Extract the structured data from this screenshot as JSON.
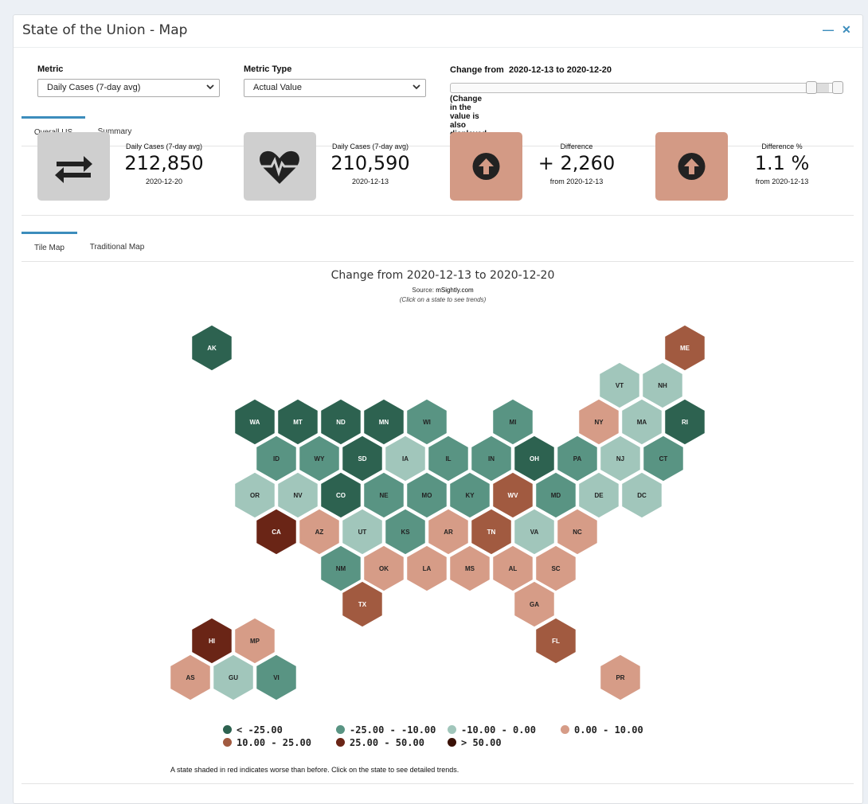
{
  "panel": {
    "title": "State of the Union - Map",
    "minimize_icon": "minus-icon",
    "close_icon": "close-icon"
  },
  "controls": {
    "metric_label": "Metric",
    "metric_value": "Daily Cases (7-day avg)",
    "metric_type_label": "Metric Type",
    "metric_type_value": "Actual Value",
    "change_label_prefix": "Change from",
    "change_label_range": "2020-12-13 to 2020-12-20",
    "note": "(Change in the value is also displayed as a % in the map.)"
  },
  "top_tabs": [
    {
      "label": "Overall US",
      "active": true
    },
    {
      "label": "Summary",
      "active": false
    }
  ],
  "kpis": [
    {
      "icon": "exchange-arrows-icon",
      "title": "Daily Cases (7-day avg)",
      "value": "212,850",
      "sub": "2020-12-20",
      "box_color": "#cfcfcf"
    },
    {
      "icon": "heartbeat-icon",
      "title": "Daily Cases (7-day avg)",
      "value": "210,590",
      "sub": "2020-12-13",
      "box_color": "#cfcfcf"
    },
    {
      "icon": "arrow-up-circle-icon",
      "title": "Difference",
      "value": "+ 2,260",
      "sub": "from 2020-12-13",
      "box_color": "#d39a85"
    },
    {
      "icon": "arrow-up-circle-icon",
      "title": "Difference %",
      "value": "1.1 %",
      "sub": "from 2020-12-13",
      "box_color": "#d39a85"
    }
  ],
  "map_tabs": [
    {
      "label": "Tile Map",
      "active": true
    },
    {
      "label": "Traditional Map",
      "active": false
    }
  ],
  "map": {
    "title": "Change from 2020-12-13 to 2020-12-20",
    "source_prefix": "Source: ",
    "source_name": "mSightly.com",
    "hint": "(Click on a state to see trends)",
    "colors": {
      "c1": "#2d6250",
      "c2": "#599483",
      "c3": "#a1c6bb",
      "c4": "#d69c87",
      "c5": "#a15a40",
      "c6": "#6a2516",
      "c7": "#3a1106"
    },
    "legend": [
      {
        "label": "< -25.00",
        "color": "#2d6250"
      },
      {
        "label": "-25.00 - -10.00",
        "color": "#599483"
      },
      {
        "label": "-10.00 - 0.00",
        "color": "#a1c6bb"
      },
      {
        "label": "0.00 - 10.00",
        "color": "#d69c87"
      },
      {
        "label": "10.00 - 25.00",
        "color": "#a15a40"
      },
      {
        "label": "25.00 - 50.00",
        "color": "#6a2516"
      },
      {
        "label": "> 50.00",
        "color": "#3a1106"
      }
    ],
    "states": [
      {
        "abbr": "AK",
        "cat": "c1"
      },
      {
        "abbr": "ME",
        "cat": "c5"
      },
      {
        "abbr": "VT",
        "cat": "c3"
      },
      {
        "abbr": "NH",
        "cat": "c3"
      },
      {
        "abbr": "WA",
        "cat": "c1"
      },
      {
        "abbr": "MT",
        "cat": "c1"
      },
      {
        "abbr": "ND",
        "cat": "c1"
      },
      {
        "abbr": "MN",
        "cat": "c1"
      },
      {
        "abbr": "WI",
        "cat": "c2"
      },
      {
        "abbr": "MI",
        "cat": "c2"
      },
      {
        "abbr": "NY",
        "cat": "c4"
      },
      {
        "abbr": "MA",
        "cat": "c3"
      },
      {
        "abbr": "RI",
        "cat": "c1"
      },
      {
        "abbr": "ID",
        "cat": "c2"
      },
      {
        "abbr": "WY",
        "cat": "c2"
      },
      {
        "abbr": "SD",
        "cat": "c1"
      },
      {
        "abbr": "IA",
        "cat": "c3"
      },
      {
        "abbr": "IL",
        "cat": "c2"
      },
      {
        "abbr": "IN",
        "cat": "c2"
      },
      {
        "abbr": "OH",
        "cat": "c1"
      },
      {
        "abbr": "PA",
        "cat": "c2"
      },
      {
        "abbr": "NJ",
        "cat": "c3"
      },
      {
        "abbr": "CT",
        "cat": "c2"
      },
      {
        "abbr": "OR",
        "cat": "c3"
      },
      {
        "abbr": "NV",
        "cat": "c3"
      },
      {
        "abbr": "CO",
        "cat": "c1"
      },
      {
        "abbr": "NE",
        "cat": "c2"
      },
      {
        "abbr": "MO",
        "cat": "c2"
      },
      {
        "abbr": "KY",
        "cat": "c2"
      },
      {
        "abbr": "WV",
        "cat": "c5"
      },
      {
        "abbr": "MD",
        "cat": "c2"
      },
      {
        "abbr": "DE",
        "cat": "c3"
      },
      {
        "abbr": "DC",
        "cat": "c3"
      },
      {
        "abbr": "CA",
        "cat": "c6"
      },
      {
        "abbr": "AZ",
        "cat": "c4"
      },
      {
        "abbr": "UT",
        "cat": "c3"
      },
      {
        "abbr": "KS",
        "cat": "c2"
      },
      {
        "abbr": "AR",
        "cat": "c4"
      },
      {
        "abbr": "TN",
        "cat": "c5"
      },
      {
        "abbr": "VA",
        "cat": "c3"
      },
      {
        "abbr": "NC",
        "cat": "c4"
      },
      {
        "abbr": "NM",
        "cat": "c2"
      },
      {
        "abbr": "OK",
        "cat": "c4"
      },
      {
        "abbr": "LA",
        "cat": "c4"
      },
      {
        "abbr": "MS",
        "cat": "c4"
      },
      {
        "abbr": "AL",
        "cat": "c4"
      },
      {
        "abbr": "SC",
        "cat": "c4"
      },
      {
        "abbr": "TX",
        "cat": "c5"
      },
      {
        "abbr": "GA",
        "cat": "c4"
      },
      {
        "abbr": "HI",
        "cat": "c6"
      },
      {
        "abbr": "MP",
        "cat": "c4"
      },
      {
        "abbr": "FL",
        "cat": "c5"
      },
      {
        "abbr": "AS",
        "cat": "c4"
      },
      {
        "abbr": "GU",
        "cat": "c3"
      },
      {
        "abbr": "VI",
        "cat": "c2"
      },
      {
        "abbr": "PR",
        "cat": "c4"
      }
    ],
    "footer": "A state shaded in red indicates worse than before. Click on the state to see detailed trends."
  }
}
